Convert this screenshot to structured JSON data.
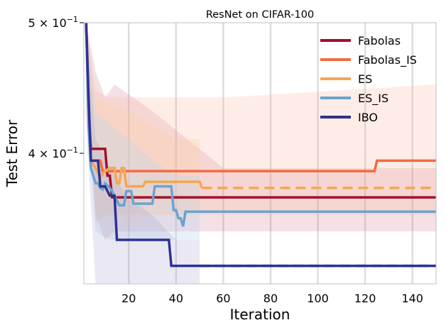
{
  "chart_data": {
    "type": "line",
    "title": "ResNet on CIFAR-100",
    "xlabel": "Iteration",
    "ylabel": "Test Error",
    "xlim": [
      1,
      150
    ],
    "ylim": [
      0.32,
      0.5
    ],
    "yscale": "log",
    "grid": "vertical",
    "legend_position": "top-right",
    "x_ticks": [
      20,
      40,
      60,
      80,
      100,
      120,
      140
    ],
    "x_tick_labels": [
      "20",
      "40",
      "60",
      "80",
      "100",
      "120",
      "140"
    ],
    "y_tick_labels": [
      {
        "value": 0.5,
        "base": "5",
        "mult": " × ",
        "exp_base": "10",
        "exp": "−1"
      },
      {
        "value": 0.4,
        "base": "4",
        "mult": " × ",
        "exp_base": "10",
        "exp": "−1"
      }
    ],
    "series": [
      {
        "name": "Fabolas",
        "color": "#a50f2a",
        "band_color": "#c85a6e",
        "band_opacity": 0.18,
        "points": [
          [
            2,
            0.5
          ],
          [
            3,
            0.43
          ],
          [
            4,
            0.403
          ],
          [
            10,
            0.403
          ],
          [
            11,
            0.385
          ],
          [
            12,
            0.385
          ],
          [
            13,
            0.371
          ],
          [
            150,
            0.371
          ]
        ],
        "dashed_points": [],
        "band": [
          [
            2,
            0.47,
            0.5
          ],
          [
            6,
            0.36,
            0.46
          ],
          [
            10,
            0.345,
            0.44
          ],
          [
            14,
            0.35,
            0.45
          ],
          [
            30,
            0.35,
            0.43
          ],
          [
            60,
            0.35,
            0.39
          ],
          [
            150,
            0.35,
            0.39
          ]
        ]
      },
      {
        "name": "Fabolas_IS",
        "color": "#f26b43",
        "band_color": "#fcb89e",
        "band_opacity": 0.25,
        "points": [
          [
            2,
            0.5
          ],
          [
            3,
            0.44
          ],
          [
            4,
            0.395
          ],
          [
            8,
            0.395
          ],
          [
            9,
            0.388
          ],
          [
            124,
            0.388
          ],
          [
            125,
            0.395
          ],
          [
            150,
            0.395
          ]
        ],
        "dashed_points": [],
        "band": [
          [
            2,
            0.45,
            0.5
          ],
          [
            6,
            0.355,
            0.445
          ],
          [
            12,
            0.36,
            0.44
          ],
          [
            30,
            0.36,
            0.44
          ],
          [
            60,
            0.36,
            0.44
          ],
          [
            150,
            0.36,
            0.45
          ]
        ]
      },
      {
        "name": "ES",
        "color": "#f6a653",
        "band_color": "#fdd0a2",
        "band_opacity": 0.3,
        "points": [
          [
            2,
            0.5
          ],
          [
            3,
            0.43
          ],
          [
            4,
            0.395
          ],
          [
            6,
            0.39
          ],
          [
            8,
            0.384
          ],
          [
            10,
            0.388
          ],
          [
            12,
            0.39
          ],
          [
            14,
            0.39
          ],
          [
            15,
            0.38
          ],
          [
            16,
            0.38
          ],
          [
            17,
            0.39
          ],
          [
            18,
            0.39
          ],
          [
            19,
            0.378
          ],
          [
            26,
            0.378
          ],
          [
            27,
            0.381
          ],
          [
            50,
            0.381
          ],
          [
            51,
            0.377
          ]
        ],
        "dashed_points": [
          [
            51,
            0.377
          ],
          [
            150,
            0.377
          ]
        ],
        "band": [
          [
            2,
            0.46,
            0.5
          ],
          [
            6,
            0.36,
            0.44
          ],
          [
            12,
            0.36,
            0.435
          ],
          [
            20,
            0.355,
            0.43
          ],
          [
            30,
            0.36,
            0.42
          ],
          [
            40,
            0.36,
            0.41
          ],
          [
            50,
            0.36,
            0.41
          ]
        ]
      },
      {
        "name": "ES_IS",
        "color": "#6ba3d0",
        "band_color": "#bdd7ee",
        "band_opacity": 0.35,
        "points": [
          [
            2,
            0.5
          ],
          [
            3,
            0.42
          ],
          [
            4,
            0.39
          ],
          [
            6,
            0.38
          ],
          [
            7,
            0.38
          ],
          [
            8,
            0.377
          ],
          [
            9,
            0.376
          ],
          [
            10,
            0.38
          ],
          [
            12,
            0.377
          ],
          [
            13,
            0.375
          ],
          [
            16,
            0.366
          ],
          [
            18,
            0.366
          ],
          [
            19,
            0.375
          ],
          [
            21,
            0.375
          ],
          [
            22,
            0.367
          ],
          [
            30,
            0.367
          ],
          [
            31,
            0.378
          ],
          [
            38,
            0.378
          ],
          [
            39,
            0.363
          ],
          [
            40,
            0.363
          ],
          [
            41,
            0.358
          ],
          [
            42,
            0.358
          ],
          [
            43,
            0.353
          ],
          [
            44,
            0.362
          ],
          [
            150,
            0.362
          ]
        ],
        "dashed_points": [
          [
            50,
            0.362
          ],
          [
            150,
            0.362
          ]
        ],
        "band": [
          [
            2,
            0.44,
            0.5
          ],
          [
            6,
            0.35,
            0.43
          ],
          [
            12,
            0.345,
            0.42
          ],
          [
            20,
            0.345,
            0.41
          ],
          [
            30,
            0.345,
            0.395
          ],
          [
            40,
            0.345,
            0.385
          ],
          [
            50,
            0.345,
            0.385
          ]
        ]
      },
      {
        "name": "IBO",
        "color": "#2e3192",
        "band_color": "#9e9ac8",
        "band_opacity": 0.22,
        "points": [
          [
            2,
            0.5
          ],
          [
            3,
            0.44
          ],
          [
            4,
            0.395
          ],
          [
            7,
            0.395
          ],
          [
            8,
            0.378
          ],
          [
            10,
            0.378
          ],
          [
            12,
            0.372
          ],
          [
            14,
            0.372
          ],
          [
            15,
            0.345
          ],
          [
            37,
            0.345
          ],
          [
            38,
            0.33
          ],
          [
            150,
            0.33
          ]
        ],
        "dashed_points": [
          [
            50,
            0.33
          ],
          [
            150,
            0.33
          ]
        ],
        "band": [
          [
            2,
            0.42,
            0.5
          ],
          [
            6,
            0.32,
            0.41
          ],
          [
            12,
            0.32,
            0.39
          ],
          [
            20,
            0.32,
            0.37
          ],
          [
            30,
            0.32,
            0.36
          ],
          [
            40,
            0.32,
            0.345
          ],
          [
            50,
            0.32,
            0.345
          ]
        ]
      }
    ]
  }
}
